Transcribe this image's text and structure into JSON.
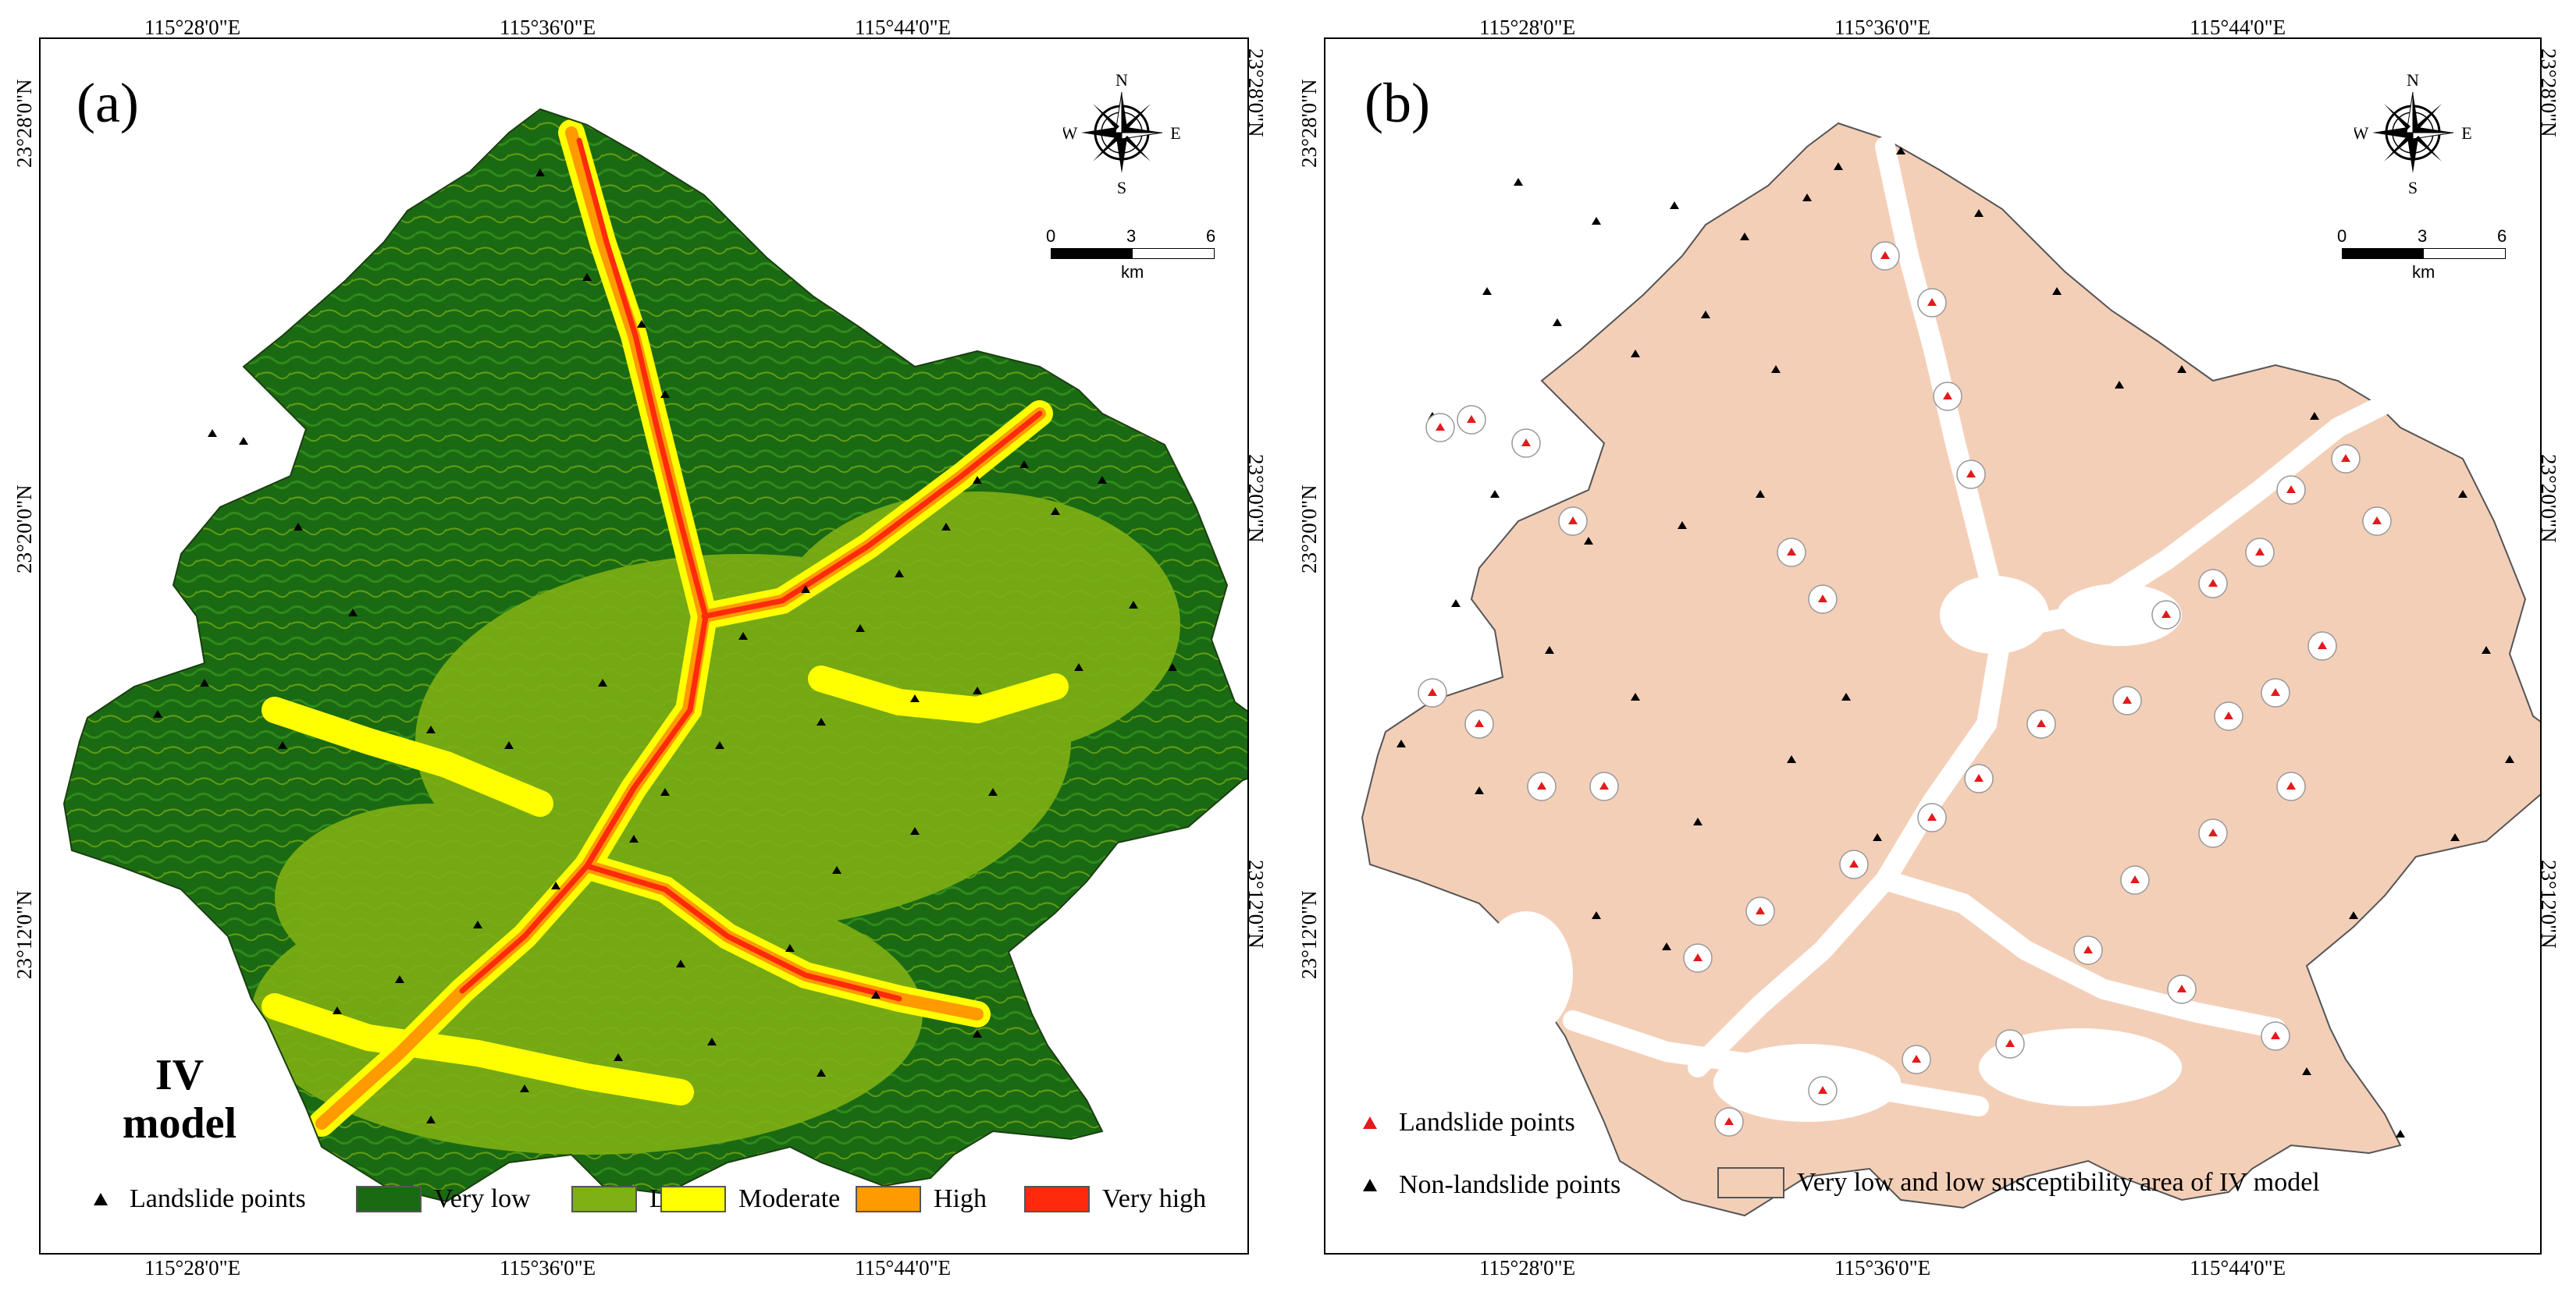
{
  "panel_a": {
    "letter": "(a)",
    "model_label_line1": "IV",
    "model_label_line2": "model",
    "lon_labels": [
      "115°28'0\"E",
      "115°36'0\"E",
      "115°44'0\"E"
    ],
    "lat_labels": [
      "23°28'0\"N",
      "23°20'0\"N",
      "23°12'0\"N"
    ],
    "legend": {
      "landslide": "Landslide points",
      "classes": [
        {
          "label": "Very low",
          "color": "#1a6a13"
        },
        {
          "label": "Low",
          "color": "#7fb014"
        },
        {
          "label": "Moderate",
          "color": "#ffff00"
        },
        {
          "label": "High",
          "color": "#ff9a00"
        },
        {
          "label": "Very high",
          "color": "#ff2a0c"
        }
      ]
    }
  },
  "panel_b": {
    "letter": "(b)",
    "lon_labels": [
      "115°28'0\"E",
      "115°36'0\"E",
      "115°44'0\"E"
    ],
    "lat_labels": [
      "23°28'0\"N",
      "23°20'0\"N",
      "23°12'0\"N"
    ],
    "fill_color": "#f4cfb8",
    "legend": {
      "landslide": "Landslide points",
      "non_landslide": "Non-landslide points",
      "area": "Very low and low susceptibility area of IV model"
    }
  },
  "compass": {
    "n": "N",
    "s": "S",
    "e": "E",
    "w": "W"
  },
  "scale": {
    "labels": [
      "0",
      "3",
      "6"
    ],
    "unit": "km"
  }
}
